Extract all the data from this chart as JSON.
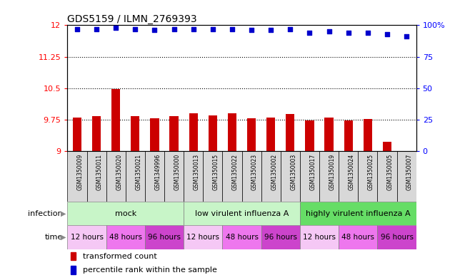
{
  "title": "GDS5159 / ILMN_2769393",
  "samples": [
    "GSM1350009",
    "GSM1350011",
    "GSM1350020",
    "GSM1350021",
    "GSM1349996",
    "GSM1350000",
    "GSM1350013",
    "GSM1350015",
    "GSM1350022",
    "GSM1350023",
    "GSM1350002",
    "GSM1350003",
    "GSM1350017",
    "GSM1350019",
    "GSM1350024",
    "GSM1350025",
    "GSM1350005",
    "GSM1350007"
  ],
  "bar_values": [
    9.8,
    9.84,
    10.48,
    9.83,
    9.78,
    9.83,
    9.9,
    9.85,
    9.9,
    9.78,
    9.8,
    9.89,
    9.73,
    9.8,
    9.73,
    9.76,
    9.22,
    9.01
  ],
  "percentile_values": [
    97,
    97,
    98,
    97,
    96,
    97,
    97,
    97,
    97,
    96,
    96,
    97,
    94,
    95,
    94,
    94,
    93,
    91
  ],
  "ylim_left": [
    9,
    12
  ],
  "ylim_right": [
    0,
    100
  ],
  "yticks_left": [
    9,
    9.75,
    10.5,
    11.25,
    12
  ],
  "yticks_right": [
    0,
    25,
    50,
    75,
    100
  ],
  "bar_color": "#cc0000",
  "dot_color": "#0000cc",
  "infection_groups": [
    {
      "label": "mock",
      "start": 0,
      "end": 6,
      "color": "#c8f5c8"
    },
    {
      "label": "low virulent influenza A",
      "start": 6,
      "end": 12,
      "color": "#c8f5c8"
    },
    {
      "label": "highly virulent influenza A",
      "start": 12,
      "end": 18,
      "color": "#66dd66"
    }
  ],
  "time_groups": [
    {
      "label": "12 hours",
      "start": 0,
      "end": 2,
      "color": "#f5c8f5"
    },
    {
      "label": "48 hours",
      "start": 2,
      "end": 4,
      "color": "#ee77ee"
    },
    {
      "label": "96 hours",
      "start": 4,
      "end": 6,
      "color": "#cc44cc"
    },
    {
      "label": "12 hours",
      "start": 6,
      "end": 8,
      "color": "#f5c8f5"
    },
    {
      "label": "48 hours",
      "start": 8,
      "end": 10,
      "color": "#ee77ee"
    },
    {
      "label": "96 hours",
      "start": 10,
      "end": 12,
      "color": "#cc44cc"
    },
    {
      "label": "12 hours",
      "start": 12,
      "end": 14,
      "color": "#f5c8f5"
    },
    {
      "label": "48 hours",
      "start": 14,
      "end": 16,
      "color": "#ee77ee"
    },
    {
      "label": "96 hours",
      "start": 16,
      "end": 18,
      "color": "#cc44cc"
    }
  ],
  "legend_red_label": "transformed count",
  "legend_blue_label": "percentile rank within the sample",
  "grid_yticks": [
    9.75,
    10.5,
    11.25
  ]
}
